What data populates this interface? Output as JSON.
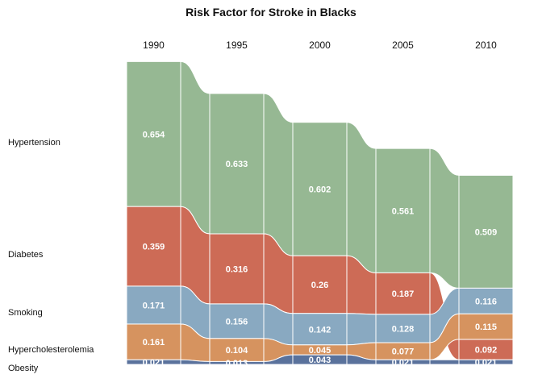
{
  "chart_data": {
    "type": "bump-area",
    "title": "Risk Factor for Stroke in Blacks",
    "categories": [
      "1990",
      "1995",
      "2000",
      "2005",
      "2010"
    ],
    "series": [
      {
        "name": "Hypertension",
        "values": [
          0.654,
          0.633,
          0.602,
          0.561,
          0.509
        ],
        "color": "#96b893"
      },
      {
        "name": "Diabetes",
        "values": [
          0.359,
          0.316,
          0.26,
          0.187,
          0.092
        ],
        "color": "#cd6b56"
      },
      {
        "name": "Smoking",
        "values": [
          0.171,
          0.156,
          0.142,
          0.128,
          0.116
        ],
        "color": "#89a9c1"
      },
      {
        "name": "Hypercholesterolemia",
        "values": [
          0.161,
          0.104,
          0.045,
          0.077,
          0.115
        ],
        "color": "#d6935f"
      },
      {
        "name": "Obesity",
        "values": [
          0.021,
          0.013,
          0.043,
          0.021,
          0.021
        ],
        "color": "#5a729c"
      }
    ],
    "value_labels": [
      [
        "0.654",
        "0.633",
        "0.602",
        "0.561",
        "0.509"
      ],
      [
        "0.359",
        "0.316",
        "0.26",
        "0.187",
        "0.092"
      ],
      [
        "0.171",
        "0.156",
        "0.142",
        "0.128",
        "0.116"
      ],
      [
        "0.161",
        "0.104",
        "0.045",
        "0.077",
        "0.115"
      ],
      [
        "0.021",
        "0.013",
        "0.043",
        "0.021",
        "0.021"
      ]
    ],
    "row_labels": [
      "Hypertension",
      "Diabetes",
      "Smoking",
      "Hypercholesterolemia",
      "Obesity"
    ]
  }
}
